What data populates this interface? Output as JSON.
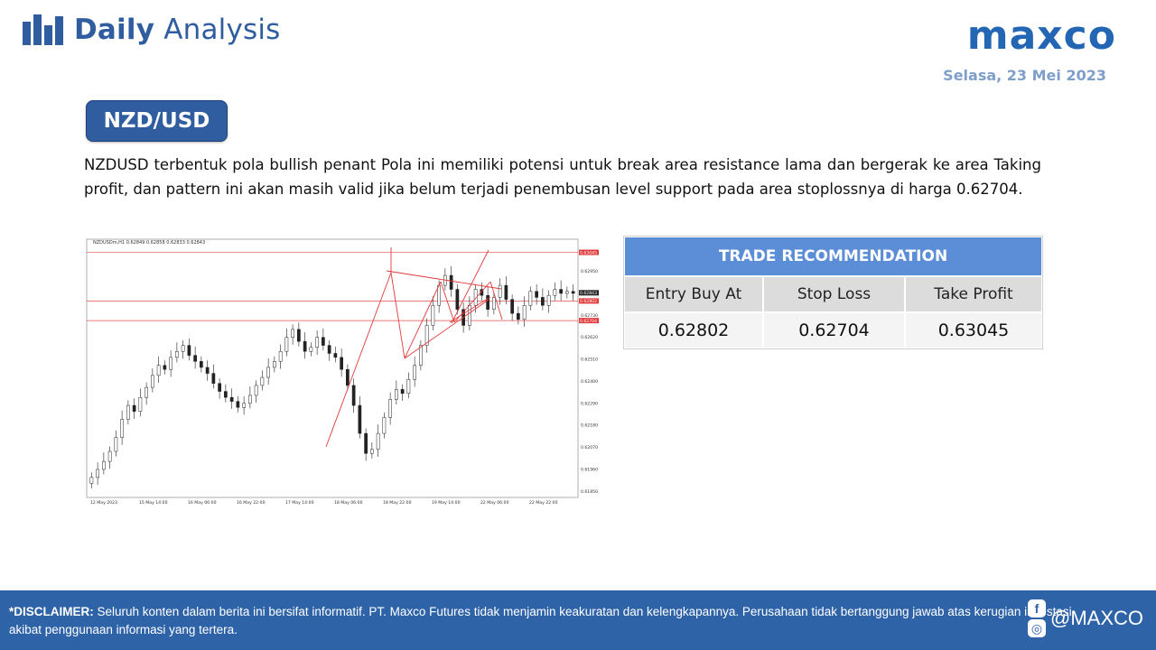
{
  "header": {
    "brand_bold": "Daily",
    "brand_light": "Analysis",
    "logo": "maxco",
    "date": "Selasa, 23 Mei 2023",
    "brand_icon": "bar-chart-icon"
  },
  "pair": "NZD/USD",
  "summary": "NZDUSD terbentuk pola bullish penant Pola ini memiliki potensi untuk break area resistance lama dan bergerak ke area Taking profit, dan pattern ini akan masih valid jika belum terjadi penembusan level support pada area stoplossnya di harga 0.62704.",
  "trade": {
    "title": "TRADE RECOMMENDATION",
    "headers": [
      "Entry Buy At",
      "Stop Loss",
      "Take Profit"
    ],
    "values": [
      "0.62802",
      "0.62704",
      "0.63045"
    ]
  },
  "chart_data": {
    "type": "candlestick",
    "title": "NZDUSDm,H1  0.62849 0.62858 0.62833 0.62843",
    "x_ticks": [
      "12 May 2023",
      "15 May 14:00",
      "16 May 06:00",
      "16 May 22:00",
      "17 May 14:00",
      "18 May 06:00",
      "18 May 22:00",
      "19 May 14:00",
      "22 May 06:00",
      "22 May 22:00"
    ],
    "y_ticks": [
      0.6295,
      0.6273,
      0.6262,
      0.6251,
      0.624,
      0.6229,
      0.6218,
      0.6207,
      0.6196,
      0.6185
    ],
    "ylim": [
      0.6182,
      0.6307
    ],
    "price_labels": [
      "0.63045",
      "0.62843",
      "0.62802",
      "0.62704"
    ],
    "levels": [
      {
        "name": "take-profit",
        "value": 0.63045
      },
      {
        "name": "entry",
        "value": 0.62802
      },
      {
        "name": "stop-loss",
        "value": 0.62704
      }
    ],
    "closes": [
      0.6192,
      0.6196,
      0.62,
      0.6205,
      0.6212,
      0.6221,
      0.6228,
      0.6225,
      0.6232,
      0.6237,
      0.6243,
      0.6248,
      0.6246,
      0.6252,
      0.6255,
      0.6258,
      0.6253,
      0.625,
      0.6247,
      0.6244,
      0.6239,
      0.6235,
      0.6232,
      0.623,
      0.6227,
      0.6229,
      0.6233,
      0.6238,
      0.6242,
      0.6247,
      0.625,
      0.6255,
      0.6262,
      0.6266,
      0.626,
      0.6255,
      0.6257,
      0.6262,
      0.6258,
      0.6254,
      0.6252,
      0.6246,
      0.6238,
      0.6228,
      0.6214,
      0.6204,
      0.6206,
      0.6214,
      0.6222,
      0.6231,
      0.6236,
      0.6234,
      0.6241,
      0.6248,
      0.6258,
      0.6268,
      0.6278,
      0.6288,
      0.6293,
      0.6286,
      0.6276,
      0.6268,
      0.6278,
      0.6286,
      0.6283,
      0.6276,
      0.6282,
      0.6288,
      0.6281,
      0.6274,
      0.6271,
      0.6278,
      0.6285,
      0.6282,
      0.6278,
      0.6283,
      0.6286,
      0.6284,
      0.6285,
      0.6284
    ]
  },
  "footer": {
    "disclaimer_label": "*DISCLAIMER:",
    "disclaimer_text": " Seluruh konten dalam berita ini bersifat informatif. PT. Maxco Futures tidak menjamin keakuratan dan kelengkapannya. Perusahaan tidak bertanggung jawab atas kerugian investasi akibat penggunaan informasi yang tertera.",
    "handle": "@MAXCO",
    "social_icons": [
      "facebook-icon",
      "instagram-icon"
    ]
  }
}
